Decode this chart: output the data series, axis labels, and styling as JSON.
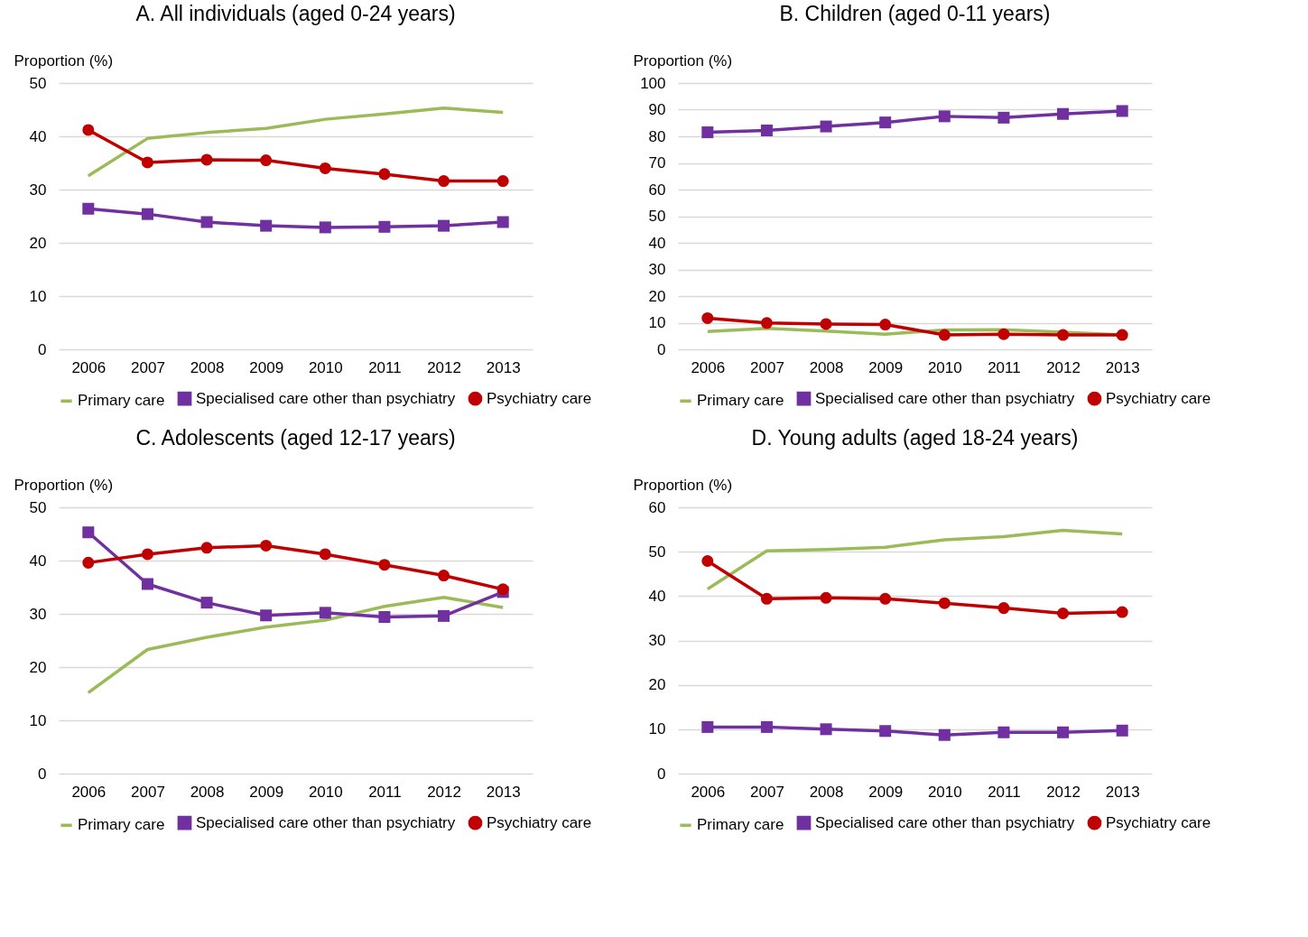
{
  "chart_data": [
    {
      "type": "line",
      "title": "A. All individuals (aged 0-24 years)",
      "ylabel": "Proportion (%)",
      "categories": [
        "2006",
        "2007",
        "2008",
        "2009",
        "2010",
        "2011",
        "2012",
        "2013"
      ],
      "ylim": [
        0,
        50
      ],
      "yticks": [
        0,
        10,
        20,
        30,
        40,
        50
      ],
      "grid": "y",
      "legend": "bottom",
      "line_style": "solid",
      "series": [
        {
          "name": "Primary care",
          "color": "#9bbb59",
          "marker": "none",
          "values": [
            32.6,
            39.6,
            40.7,
            41.5,
            43.2,
            44.2,
            45.3,
            44.5
          ]
        },
        {
          "name": "Specialised care other than psychiatry",
          "color": "#7030a0",
          "marker": "square",
          "values": [
            26.4,
            25.4,
            23.9,
            23.2,
            22.9,
            23.0,
            23.2,
            23.9
          ]
        },
        {
          "name": "Psychiatry care",
          "color": "#c00000",
          "marker": "circle",
          "values": [
            41.2,
            35.1,
            35.6,
            35.5,
            34.0,
            32.9,
            31.6,
            31.6
          ]
        }
      ]
    },
    {
      "type": "line",
      "title": "B. Children (aged 0-11 years)",
      "ylabel": "Proportion (%)",
      "categories": [
        "2006",
        "2007",
        "2008",
        "2009",
        "2010",
        "2011",
        "2012",
        "2013"
      ],
      "ylim": [
        0,
        100
      ],
      "yticks": [
        0,
        10,
        20,
        30,
        40,
        50,
        60,
        70,
        80,
        90,
        100
      ],
      "grid": "y",
      "legend": "bottom",
      "line_style": "solid",
      "series": [
        {
          "name": "Primary care",
          "color": "#9bbb59",
          "marker": "none",
          "values": [
            6.7,
            7.9,
            6.9,
            5.7,
            7.3,
            7.4,
            6.4,
            5.4
          ]
        },
        {
          "name": "Specialised care other than psychiatry",
          "color": "#7030a0",
          "marker": "square",
          "values": [
            81.5,
            82.2,
            83.7,
            85.2,
            87.5,
            87.0,
            88.4,
            89.5
          ]
        },
        {
          "name": "Psychiatry care",
          "color": "#c00000",
          "marker": "circle",
          "values": [
            11.7,
            9.9,
            9.5,
            9.3,
            5.4,
            5.7,
            5.4,
            5.4
          ]
        }
      ]
    },
    {
      "type": "line",
      "title": "C. Adolescents (aged 12-17 years)",
      "ylabel": "Proportion (%)",
      "categories": [
        "2006",
        "2007",
        "2008",
        "2009",
        "2010",
        "2011",
        "2012",
        "2013"
      ],
      "ylim": [
        0,
        50
      ],
      "yticks": [
        0,
        10,
        20,
        30,
        40,
        50
      ],
      "grid": "y",
      "legend": "bottom",
      "line_style": "solid",
      "series": [
        {
          "name": "Primary care",
          "color": "#9bbb59",
          "marker": "none",
          "values": [
            15.2,
            23.3,
            25.6,
            27.5,
            28.8,
            31.4,
            33.1,
            31.2
          ]
        },
        {
          "name": "Specialised care other than psychiatry",
          "color": "#7030a0",
          "marker": "square",
          "values": [
            45.3,
            35.6,
            32.1,
            29.7,
            30.2,
            29.4,
            29.6,
            34.1
          ]
        },
        {
          "name": "Psychiatry care",
          "color": "#c00000",
          "marker": "circle",
          "values": [
            39.6,
            41.2,
            42.4,
            42.8,
            41.2,
            39.2,
            37.2,
            34.6
          ]
        }
      ]
    },
    {
      "type": "line",
      "title": "D. Young adults (aged 18-24 years)",
      "ylabel": "Proportion (%)",
      "categories": [
        "2006",
        "2007",
        "2008",
        "2009",
        "2010",
        "2011",
        "2012",
        "2013"
      ],
      "ylim": [
        0,
        60
      ],
      "yticks": [
        0,
        10,
        20,
        30,
        40,
        50,
        60
      ],
      "grid": "y",
      "legend": "bottom",
      "line_style": "solid",
      "series": [
        {
          "name": "Primary care",
          "color": "#9bbb59",
          "marker": "none",
          "values": [
            41.6,
            50.2,
            50.5,
            51.0,
            52.7,
            53.4,
            54.8,
            54.0
          ]
        },
        {
          "name": "Specialised care other than psychiatry",
          "color": "#7030a0",
          "marker": "square",
          "values": [
            10.5,
            10.5,
            10.0,
            9.6,
            8.7,
            9.3,
            9.3,
            9.7
          ]
        },
        {
          "name": "Psychiatry care",
          "color": "#c00000",
          "marker": "circle",
          "values": [
            47.9,
            39.4,
            39.6,
            39.4,
            38.4,
            37.3,
            36.1,
            36.4
          ]
        }
      ]
    }
  ]
}
